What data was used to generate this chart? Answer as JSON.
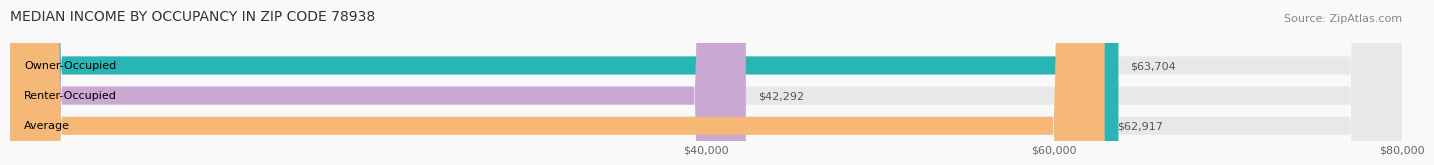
{
  "title": "MEDIAN INCOME BY OCCUPANCY IN ZIP CODE 78938",
  "source": "Source: ZipAtlas.com",
  "categories": [
    "Owner-Occupied",
    "Renter-Occupied",
    "Average"
  ],
  "values": [
    63704,
    42292,
    62917
  ],
  "bar_colors": [
    "#2ab5b5",
    "#c9a8d4",
    "#f5b877"
  ],
  "bar_bg_color": "#e8e8e8",
  "value_labels": [
    "$63,704",
    "$42,292",
    "$62,917"
  ],
  "xlim": [
    0,
    80000
  ],
  "xticks": [
    40000,
    60000,
    80000
  ],
  "xtick_labels": [
    "$40,000",
    "$60,000",
    "$80,000"
  ],
  "title_fontsize": 10,
  "label_fontsize": 8,
  "tick_fontsize": 8,
  "source_fontsize": 8,
  "bar_height": 0.6,
  "background_color": "#f9f9f9"
}
